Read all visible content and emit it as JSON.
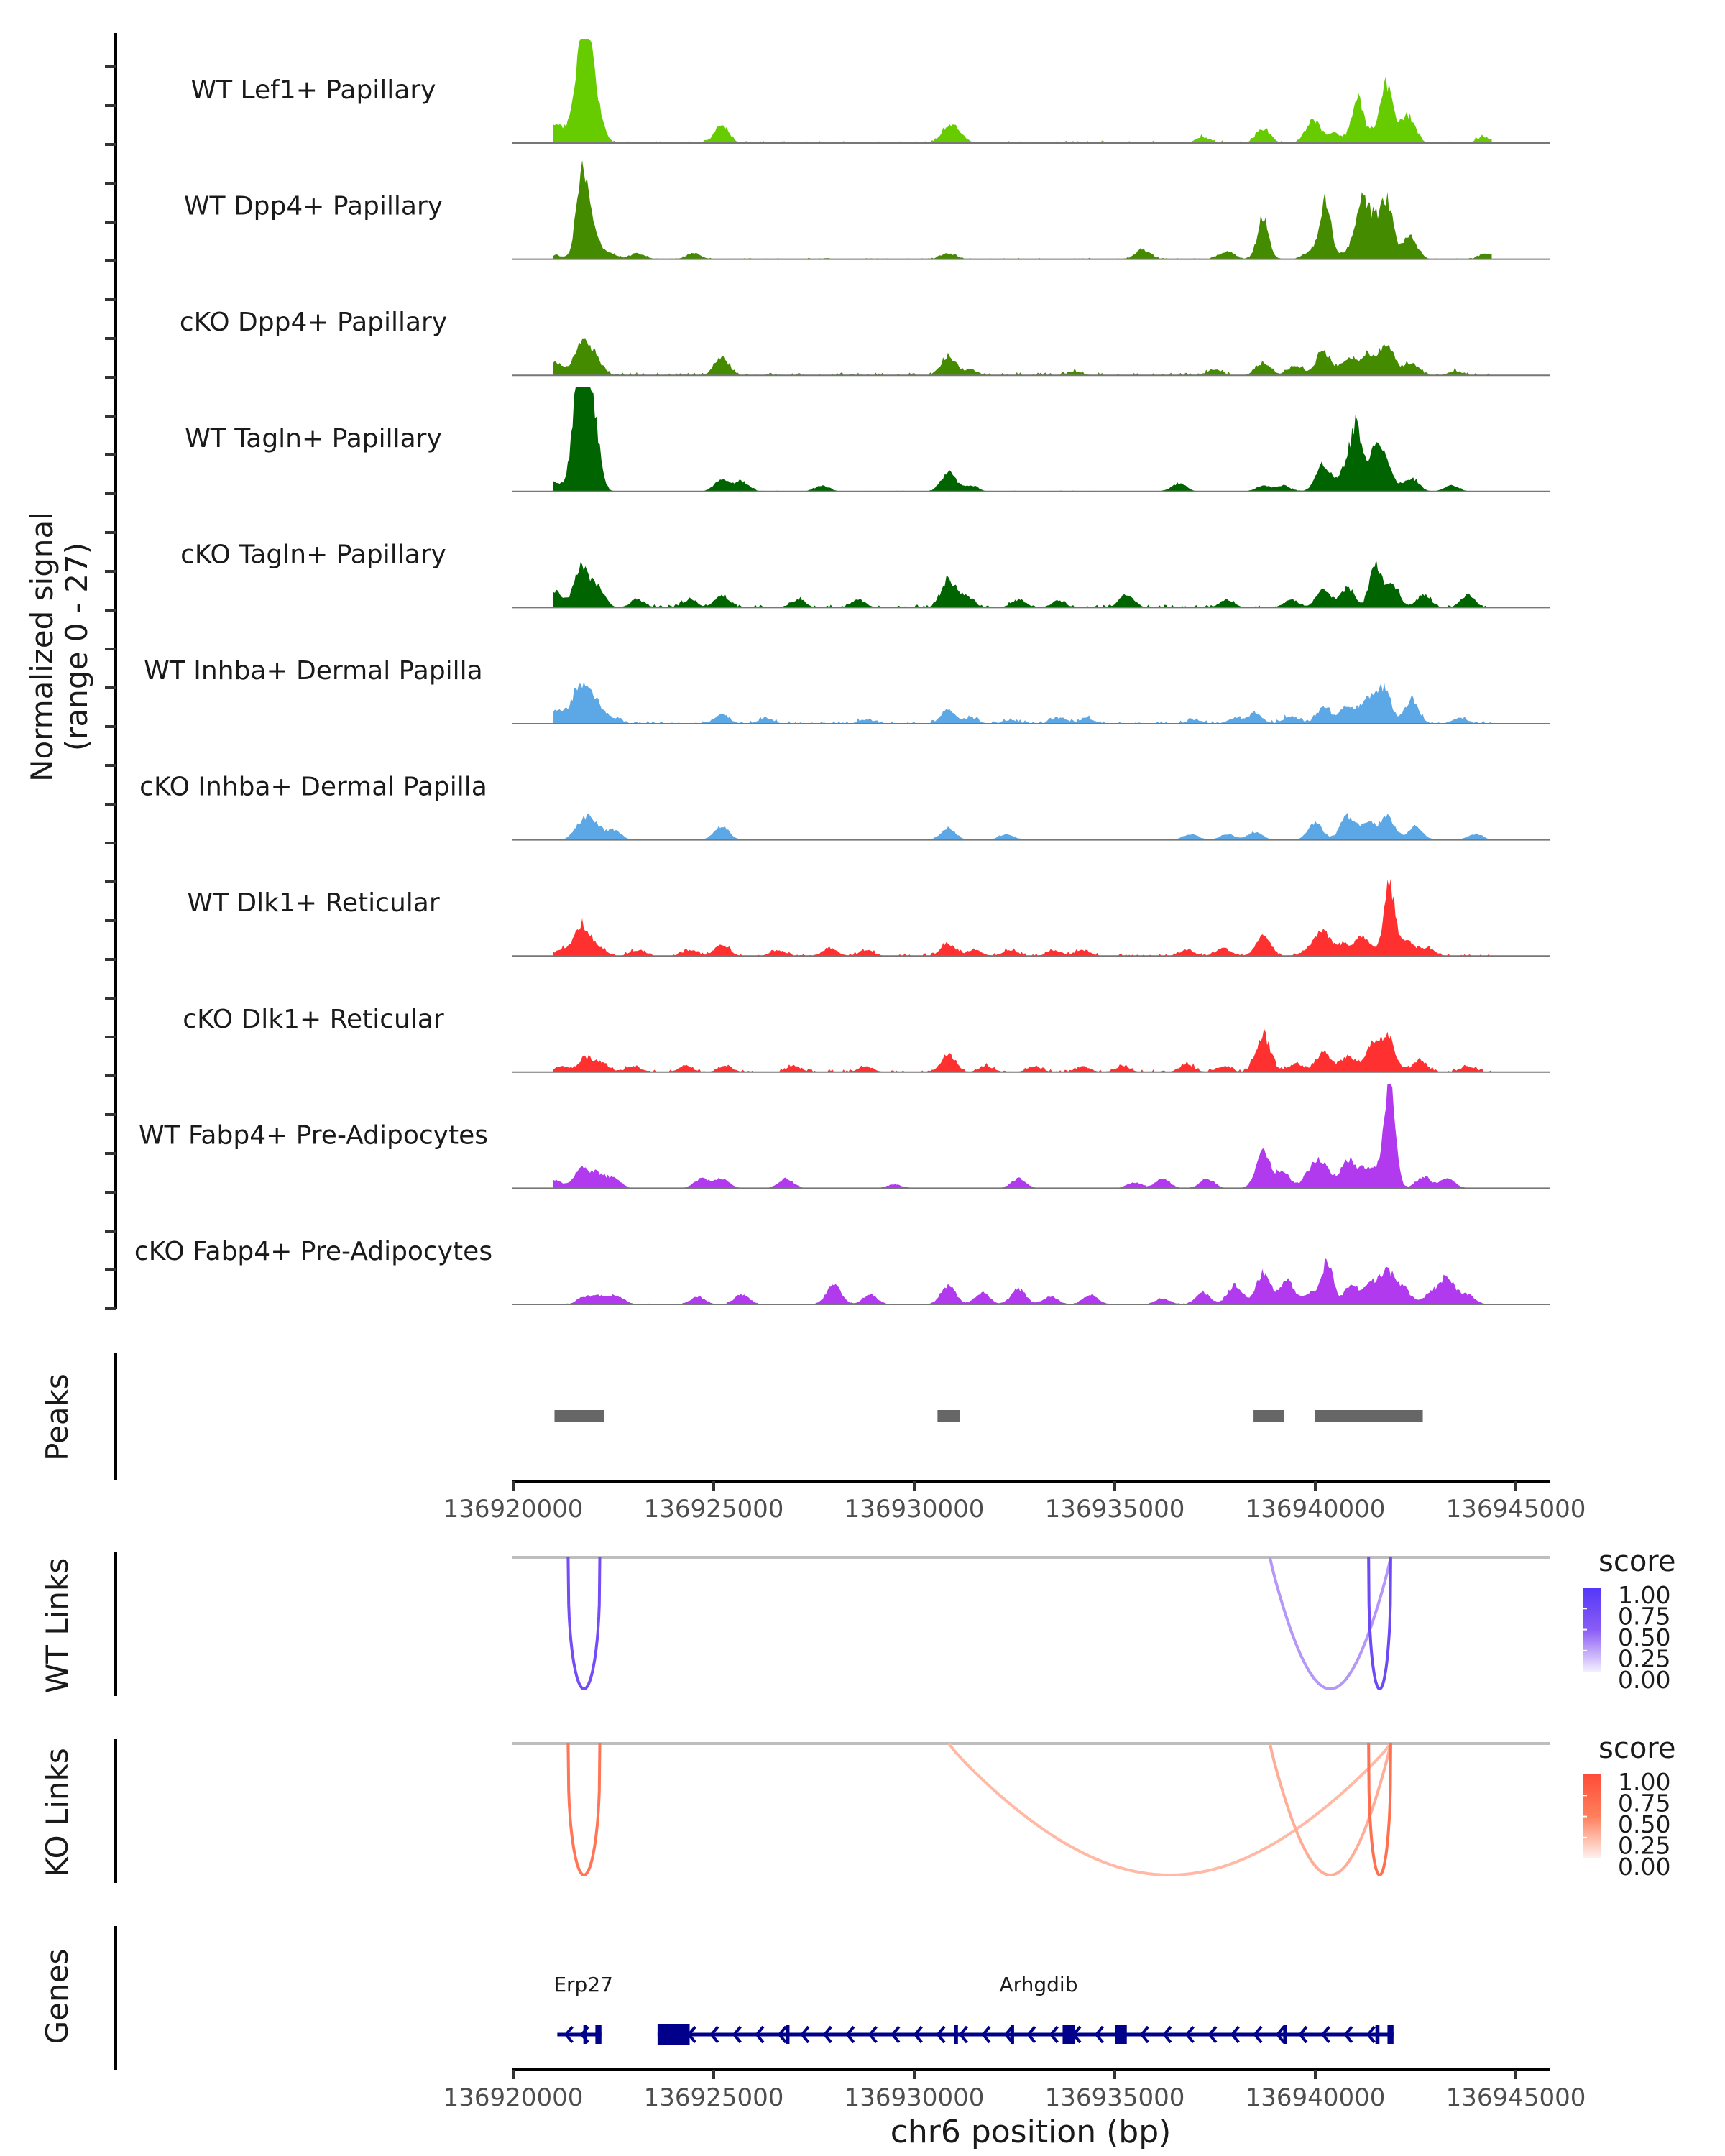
{
  "chart_data": {
    "type": "area",
    "title": "",
    "xlabel": "chr6 position (bp)",
    "ylabel": "Normalized signal\n(range 0 - 27)",
    "ylabel_lines": [
      "Normalized signal",
      "(range 0 - 27)"
    ],
    "ylim": [
      0,
      27
    ],
    "xlim": [
      136920000,
      136945500
    ],
    "x_ticks": [
      136920000,
      136925000,
      136930000,
      136935000,
      136940000,
      136945000
    ],
    "x_tick_labels": [
      "136920000",
      "136925000",
      "136930000",
      "136935000",
      "136940000",
      "136945000"
    ],
    "grid": false,
    "tracks": [
      {
        "name": "WT Lef1+ Papillary",
        "color": "#66CC00",
        "peaks": [
          [
            136921050,
            4
          ],
          [
            136921400,
            3
          ],
          [
            136921700,
            27
          ],
          [
            136921900,
            12
          ],
          [
            136922050,
            8
          ],
          [
            136925200,
            4.5
          ],
          [
            136930850,
            4
          ],
          [
            136931100,
            2
          ],
          [
            136937200,
            1.5
          ],
          [
            136938700,
            3.5
          ],
          [
            136939950,
            6
          ],
          [
            136940500,
            2.5
          ],
          [
            136941050,
            12
          ],
          [
            136941500,
            3.5
          ],
          [
            136941800,
            14
          ],
          [
            136942300,
            7
          ],
          [
            136944200,
            1.5
          ]
        ],
        "noise": 0.6
      },
      {
        "name": "WT Dpp4+ Papillary",
        "color": "#458B00",
        "peaks": [
          [
            136921050,
            1
          ],
          [
            136921700,
            19
          ],
          [
            136921950,
            8
          ],
          [
            136922400,
            1.5
          ],
          [
            136923100,
            1.5
          ],
          [
            136924500,
            1.5
          ],
          [
            136930850,
            1.5
          ],
          [
            136935700,
            2.5
          ],
          [
            136937800,
            2
          ],
          [
            136938700,
            11
          ],
          [
            136939900,
            2
          ],
          [
            136940250,
            15
          ],
          [
            136940900,
            3
          ],
          [
            136941150,
            12
          ],
          [
            136941450,
            10
          ],
          [
            136941800,
            14
          ],
          [
            136942350,
            6
          ],
          [
            136944300,
            1.5
          ]
        ],
        "noise": 0.3
      },
      {
        "name": "cKO Dpp4+ Papillary",
        "color": "#458B00",
        "peaks": [
          [
            136921050,
            3
          ],
          [
            136921700,
            8
          ],
          [
            136922050,
            4
          ],
          [
            136925200,
            4.5
          ],
          [
            136930850,
            5
          ],
          [
            136931400,
            1.5
          ],
          [
            136934000,
            1
          ],
          [
            136937500,
            1.5
          ],
          [
            136938700,
            3
          ],
          [
            136939500,
            2.5
          ],
          [
            136940200,
            6
          ],
          [
            136940800,
            4
          ],
          [
            136941300,
            5.5
          ],
          [
            136941800,
            8
          ],
          [
            136942400,
            3
          ],
          [
            136943500,
            1
          ]
        ],
        "noise": 0.8
      },
      {
        "name": "WT Tagln+ Papillary",
        "color": "#006400",
        "peaks": [
          [
            136921050,
            2.5
          ],
          [
            136921600,
            25
          ],
          [
            136921800,
            27
          ],
          [
            136922050,
            14
          ],
          [
            136925200,
            3
          ],
          [
            136925700,
            2.5
          ],
          [
            136927700,
            1.5
          ],
          [
            136930850,
            5
          ],
          [
            136931400,
            1.5
          ],
          [
            136936600,
            2
          ],
          [
            136938700,
            1.5
          ],
          [
            136939200,
            1.5
          ],
          [
            136940200,
            7
          ],
          [
            136940800,
            7
          ],
          [
            136941050,
            14
          ],
          [
            136941500,
            10
          ],
          [
            136941800,
            5
          ],
          [
            136942400,
            3.5
          ],
          [
            136943400,
            1.5
          ]
        ],
        "noise": 0.2
      },
      {
        "name": "cKO Tagln+ Papillary",
        "color": "#006400",
        "peaks": [
          [
            136921050,
            4
          ],
          [
            136921700,
            10
          ],
          [
            136922100,
            5
          ],
          [
            136923100,
            2
          ],
          [
            136924400,
            2
          ],
          [
            136925200,
            3
          ],
          [
            136927100,
            2
          ],
          [
            136928600,
            2
          ],
          [
            136930850,
            7
          ],
          [
            136931300,
            3
          ],
          [
            136932600,
            2
          ],
          [
            136933600,
            1.5
          ],
          [
            136935300,
            3.5
          ],
          [
            136937800,
            2
          ],
          [
            136939400,
            2
          ],
          [
            136940200,
            4.5
          ],
          [
            136940800,
            5
          ],
          [
            136941500,
            11
          ],
          [
            136941900,
            6
          ],
          [
            136942700,
            3
          ],
          [
            136943800,
            3
          ]
        ],
        "noise": 0.7
      },
      {
        "name": "WT Inhba+ Dermal Papilla",
        "color": "#5CA8E6",
        "peaks": [
          [
            136921050,
            3
          ],
          [
            136921400,
            2
          ],
          [
            136921700,
            9
          ],
          [
            136922050,
            5
          ],
          [
            136922500,
            1.5
          ],
          [
            136925200,
            2.5
          ],
          [
            136926300,
            1.5
          ],
          [
            136928800,
            1
          ],
          [
            136930850,
            3.5
          ],
          [
            136931400,
            1.5
          ],
          [
            136932400,
            1
          ],
          [
            136933600,
            1.5
          ],
          [
            136934300,
            1.5
          ],
          [
            136937000,
            1
          ],
          [
            136938000,
            1.5
          ],
          [
            136938500,
            2.5
          ],
          [
            136939400,
            2
          ],
          [
            136940200,
            4
          ],
          [
            136940800,
            4.5
          ],
          [
            136941300,
            6
          ],
          [
            136941700,
            9
          ],
          [
            136942400,
            6
          ],
          [
            136943600,
            1.5
          ]
        ],
        "noise": 0.8
      },
      {
        "name": "cKO Inhba+ Dermal Papilla",
        "color": "#5CA8E6",
        "peaks": [
          [
            136921700,
            4
          ],
          [
            136922000,
            4.5
          ],
          [
            136922500,
            2.5
          ],
          [
            136925200,
            3.5
          ],
          [
            136930850,
            3
          ],
          [
            136932300,
            1.5
          ],
          [
            136936900,
            1.5
          ],
          [
            136937800,
            1.5
          ],
          [
            136938500,
            2
          ],
          [
            136940000,
            4.5
          ],
          [
            136940800,
            6
          ],
          [
            136941300,
            4.5
          ],
          [
            136941800,
            6
          ],
          [
            136942500,
            3.5
          ],
          [
            136944000,
            1.5
          ]
        ],
        "noise": 0.1
      },
      {
        "name": "WT Dlk1+ Reticular",
        "color": "#FF3030",
        "peaks": [
          [
            136921200,
            1.5
          ],
          [
            136921700,
            8
          ],
          [
            136922100,
            2.5
          ],
          [
            136923100,
            1.5
          ],
          [
            136924400,
            1.5
          ],
          [
            136925200,
            3
          ],
          [
            136926600,
            1.5
          ],
          [
            136927900,
            2
          ],
          [
            136928800,
            1.5
          ],
          [
            136930850,
            3
          ],
          [
            136931500,
            1.5
          ],
          [
            136932400,
            1.5
          ],
          [
            136933500,
            1.5
          ],
          [
            136934200,
            1.5
          ],
          [
            136936800,
            1.5
          ],
          [
            136937700,
            2
          ],
          [
            136938700,
            5
          ],
          [
            136939900,
            2
          ],
          [
            136940200,
            6
          ],
          [
            136940700,
            3
          ],
          [
            136941200,
            5
          ],
          [
            136941850,
            18
          ],
          [
            136942300,
            3.5
          ],
          [
            136942800,
            2
          ]
        ],
        "noise": 0.7
      },
      {
        "name": "cKO Dlk1+ Reticular",
        "color": "#FF3030",
        "peaks": [
          [
            136921200,
            1.5
          ],
          [
            136921800,
            3.5
          ],
          [
            136922200,
            2.5
          ],
          [
            136923000,
            1.5
          ],
          [
            136924300,
            1.5
          ],
          [
            136925300,
            1.5
          ],
          [
            136927000,
            1.5
          ],
          [
            136928800,
            1.5
          ],
          [
            136930850,
            4.5
          ],
          [
            136931800,
            1.5
          ],
          [
            136933000,
            1.5
          ],
          [
            136934200,
            1.5
          ],
          [
            136935200,
            1.5
          ],
          [
            136936800,
            2
          ],
          [
            136937700,
            1.5
          ],
          [
            136938700,
            9.5
          ],
          [
            136939500,
            2
          ],
          [
            136940200,
            5
          ],
          [
            136940800,
            4
          ],
          [
            136941400,
            6
          ],
          [
            136941800,
            9
          ],
          [
            136942600,
            3
          ],
          [
            136943800,
            1.5
          ]
        ],
        "noise": 0.7
      },
      {
        "name": "WT Fabp4+ Pre-Adipocytes",
        "color": "#B23AEE",
        "peaks": [
          [
            136921050,
            2
          ],
          [
            136921700,
            5
          ],
          [
            136922100,
            3.5
          ],
          [
            136922500,
            2.5
          ],
          [
            136924700,
            2.5
          ],
          [
            136925200,
            2.5
          ],
          [
            136926800,
            2.5
          ],
          [
            136929500,
            1
          ],
          [
            136932600,
            2.5
          ],
          [
            136935500,
            1.5
          ],
          [
            136936200,
            2.5
          ],
          [
            136937300,
            2.5
          ],
          [
            136938700,
            9
          ],
          [
            136939200,
            4
          ],
          [
            136939900,
            4.5
          ],
          [
            136940200,
            6
          ],
          [
            136940800,
            7
          ],
          [
            136941200,
            4
          ],
          [
            136941500,
            3.5
          ],
          [
            136941850,
            27
          ],
          [
            136942700,
            3
          ],
          [
            136943300,
            2.5
          ]
        ],
        "noise": 0.1
      },
      {
        "name": "cKO Fabp4+ Pre-Adipocytes",
        "color": "#B23AEE",
        "peaks": [
          [
            136921800,
            2
          ],
          [
            136922200,
            2
          ],
          [
            136922600,
            2
          ],
          [
            136924600,
            2
          ],
          [
            136925700,
            2.5
          ],
          [
            136928000,
            5
          ],
          [
            136928900,
            2.5
          ],
          [
            136930850,
            5
          ],
          [
            136931700,
            3
          ],
          [
            136932600,
            4
          ],
          [
            136933400,
            2
          ],
          [
            136934400,
            2.5
          ],
          [
            136936200,
            1.5
          ],
          [
            136937200,
            3
          ],
          [
            136938000,
            5
          ],
          [
            136938700,
            8
          ],
          [
            136939300,
            6
          ],
          [
            136939900,
            3
          ],
          [
            136940300,
            11
          ],
          [
            136940900,
            5
          ],
          [
            136941400,
            5
          ],
          [
            136941800,
            8
          ],
          [
            136942200,
            4
          ],
          [
            136942900,
            3
          ],
          [
            136943300,
            7
          ],
          [
            136943800,
            2.5
          ]
        ],
        "noise": 0.2
      }
    ],
    "peaks_track": {
      "label": "Peaks",
      "color": "#666666",
      "regions": [
        [
          136921030,
          136922260
        ],
        [
          136930580,
          136931130
        ],
        [
          136938460,
          136939220
        ],
        [
          136940000,
          136942680
        ]
      ]
    },
    "links_tracks": [
      {
        "label": "WT Links",
        "legend_title": "score",
        "color_low": "#FFFFFF",
        "color_high": "#0000FF",
        "legend_ticks": [
          "1.00",
          "0.75",
          "0.50",
          "0.25",
          "0.00"
        ],
        "links": [
          {
            "start": 136921370,
            "end": 136922160,
            "score": 0.7
          },
          {
            "start": 136938870,
            "end": 136941880,
            "score": 0.3
          },
          {
            "start": 136941330,
            "end": 136941880,
            "score": 0.75
          }
        ]
      },
      {
        "label": "KO Links",
        "legend_title": "score",
        "color_low": "#FFFFFF",
        "color_high": "#FF0000",
        "legend_ticks": [
          "1.00",
          "0.75",
          "0.50",
          "0.25",
          "0.00"
        ],
        "links": [
          {
            "start": 136921370,
            "end": 136922160,
            "score": 0.6
          },
          {
            "start": 136930860,
            "end": 136941880,
            "score": 0.25
          },
          {
            "start": 136938870,
            "end": 136941880,
            "score": 0.3
          },
          {
            "start": 136941330,
            "end": 136941880,
            "score": 0.65
          }
        ]
      }
    ],
    "genes_track": {
      "label": "Genes",
      "color": "#00008B",
      "genes": [
        {
          "name": "Erp27",
          "strand": "-",
          "start": 136921100,
          "end": 136922200,
          "exons": [
            [
              136921750,
              136921820
            ],
            [
              136922050,
              136922200
            ]
          ],
          "cds": []
        },
        {
          "name": "Arhgdib",
          "strand": "-",
          "start": 136923600,
          "end": 136941950,
          "exons": [
            [
              136926800,
              136926860
            ],
            [
              136931000,
              136931060
            ],
            [
              136932400,
              136932460
            ],
            [
              136933700,
              136934000
            ],
            [
              136935000,
              136935300
            ],
            [
              136939200,
              136939260
            ],
            [
              136941500,
              136941600
            ],
            [
              136941800,
              136941950
            ]
          ],
          "cds": [
            [
              136923600,
              136924400
            ]
          ]
        }
      ]
    }
  }
}
